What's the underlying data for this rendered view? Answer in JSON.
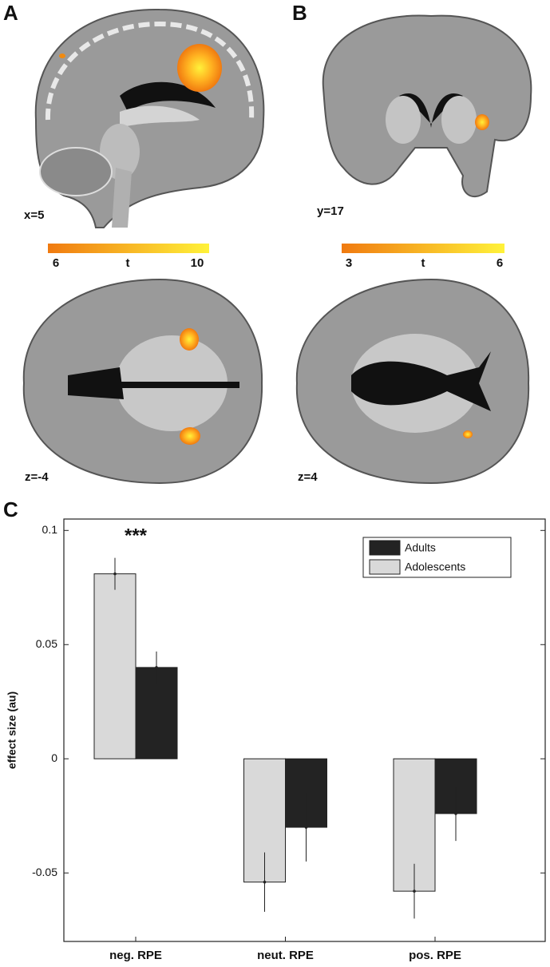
{
  "panels": [
    {
      "letter": "A",
      "slices": [
        "x=5",
        "z=-4"
      ],
      "colorbar": {
        "min": "6",
        "label": "t",
        "max": "10"
      }
    },
    {
      "letter": "B",
      "slices": [
        "y=17",
        "z=4"
      ],
      "colorbar": {
        "min": "3",
        "label": "t",
        "max": "6"
      }
    }
  ],
  "chart_data": {
    "type": "bar",
    "panel_letter": "C",
    "ylabel": "effect size (au)",
    "annotation": "***",
    "categories": [
      "neg. RPE",
      "neut. RPE",
      "pos. RPE"
    ],
    "series": [
      {
        "name": "Adults",
        "color": "#232323",
        "values": [
          0.04,
          -0.03,
          -0.024
        ],
        "errors": [
          0.007,
          0.015,
          0.012
        ]
      },
      {
        "name": "Adolescents",
        "color": "#d9d9d9",
        "values": [
          0.081,
          -0.054,
          -0.058
        ],
        "errors": [
          0.007,
          0.013,
          0.012
        ]
      }
    ],
    "ylim": [
      -0.08,
      0.105
    ],
    "yticks": [
      -0.05,
      0,
      0.05,
      0.1
    ],
    "legend": "upper right"
  }
}
